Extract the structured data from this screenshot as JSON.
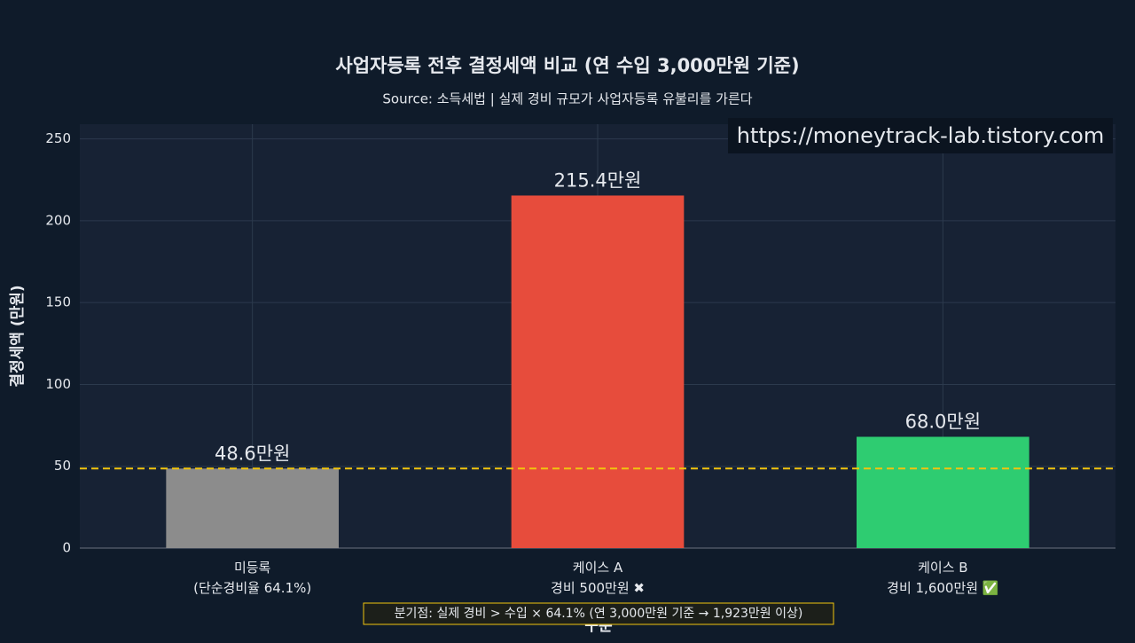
{
  "chart_data": {
    "type": "bar",
    "title": "사업자등록 전후 결정세액 비교 (연 수입 3,000만원 기준)",
    "subtitle": "Source: 소득세법 | 실제 경비 규모가 사업자등록 유불리를 가른다",
    "watermark": "https://moneytrack-lab.tistory.com",
    "y_label": "결정세액 (만원)",
    "x_label": "구분",
    "categories": [
      "미등록\n(단순경비율 64.1%)",
      "케이스 A\n경비 500만원 ✖",
      "케이스 B\n경비 1,600만원 ✅"
    ],
    "values": [
      48.6,
      215.4,
      68.0
    ],
    "value_labels": [
      "48.6만원",
      "215.4만원",
      "68.0만원"
    ],
    "colors": [
      "#8c8c8c",
      "#e74c3c",
      "#2ecc71"
    ],
    "label_colors": [
      "#c8ccd2",
      "#e74c3c",
      "#2ecc71"
    ],
    "reference_line": {
      "value": 48.6,
      "color": "#f1c40f"
    },
    "annotation": "분기점: 실제 경비 > 수입 × 64.1% (연 3,000만원 기준 → 1,923만원 이상)",
    "ylim": [
      0,
      259
    ],
    "yticks": [
      0,
      50,
      100,
      150,
      200,
      250
    ],
    "grid": true
  }
}
